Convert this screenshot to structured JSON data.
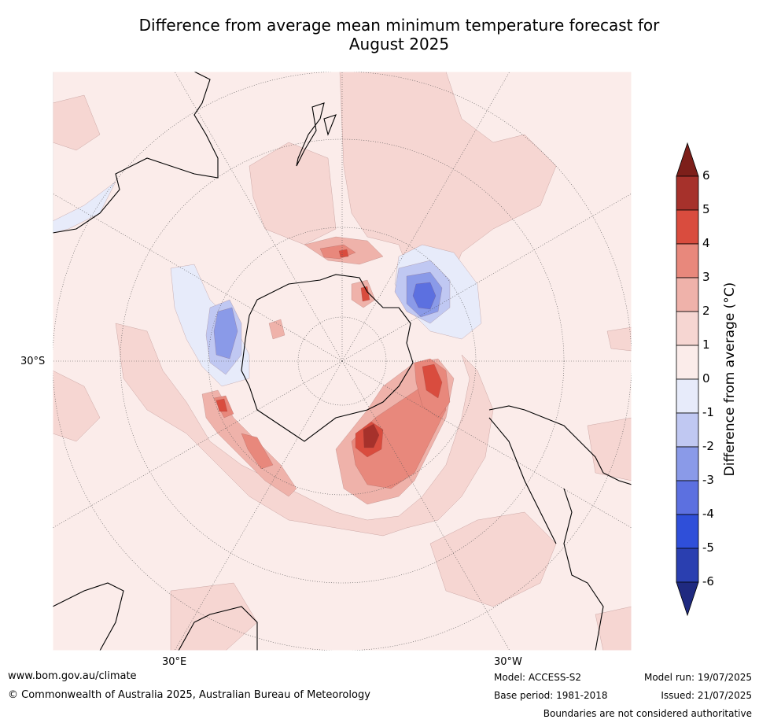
{
  "title_line1": "Difference from average mean minimum temperature forecast for",
  "title_line2": "August 2025",
  "map": {
    "background_color": "#fbecea",
    "graticule_labels": {
      "left": "30°S",
      "bottom_left": "30°E",
      "bottom_right": "30°W"
    }
  },
  "colorbar": {
    "title": "Difference from average (°C)",
    "ticks": [
      "6",
      "5",
      "4",
      "3",
      "2",
      "1",
      "0",
      "-1",
      "-2",
      "-3",
      "-4",
      "-5",
      "-6"
    ],
    "colors": {
      "gt6": "#7d1f1a",
      "5_6": "#a6312b",
      "4_5": "#d94c3e",
      "3_4": "#e8887c",
      "2_3": "#efb2aa",
      "1_2": "#f6d6d2",
      "0_1": "#fbecea",
      "m1_0": "#e7ebfa",
      "m2_m1": "#c0c8f2",
      "m3_m2": "#8a9ae8",
      "m4_m3": "#5c70e0",
      "m5_m4": "#2f4fd9",
      "m6_m5": "#2a3fb0",
      "lt_m6": "#1f2a80"
    }
  },
  "footer": {
    "website": "www.bom.gov.au/climate",
    "copyright": "© Commonwealth of Australia 2025, Australian Bureau of Meteorology",
    "model": "Model: ACCESS-S2",
    "base_period": "Base period: 1981-2018",
    "model_run": "Model run: 19/07/2025",
    "issued": "Issued: 21/07/2025",
    "disclaimer": "Boundaries are not considered authoritative"
  }
}
